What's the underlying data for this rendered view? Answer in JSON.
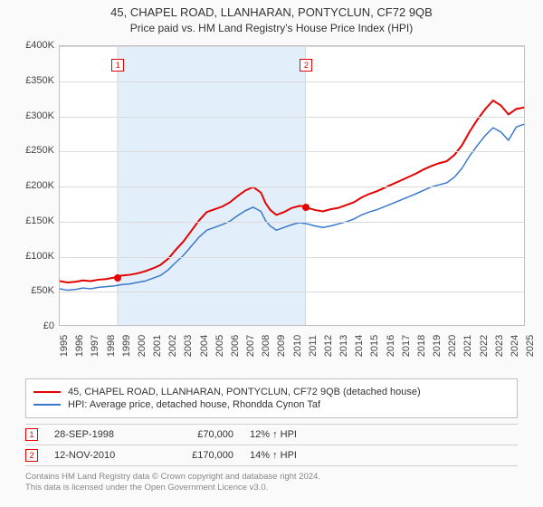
{
  "title": {
    "line1": "45, CHAPEL ROAD, LLANHARAN, PONTYCLUN, CF72 9QB",
    "line2": "Price paid vs. HM Land Registry's House Price Index (HPI)",
    "fontsize1": 13,
    "fontsize2": 12
  },
  "chart": {
    "background_color": "#ffffff",
    "grid_color": "#dadada",
    "border_color": "#bfbfbf",
    "highlight_color": "#e2effa",
    "ylim": [
      0,
      400000
    ],
    "ytick_step": 50000,
    "yticks": [
      "£0",
      "£50K",
      "£100K",
      "£150K",
      "£200K",
      "£250K",
      "£300K",
      "£350K",
      "£400K"
    ],
    "xlim": [
      1995,
      2025
    ],
    "xticks": [
      "1995",
      "1996",
      "1997",
      "1998",
      "1999",
      "2000",
      "2001",
      "2002",
      "2003",
      "2004",
      "2005",
      "2006",
      "2007",
      "2008",
      "2009",
      "2010",
      "2011",
      "2012",
      "2013",
      "2014",
      "2015",
      "2016",
      "2017",
      "2018",
      "2019",
      "2020",
      "2021",
      "2022",
      "2023",
      "2024",
      "2025"
    ],
    "label_fontsize": 11,
    "highlight_range": [
      1998.74,
      2010.87
    ],
    "series": [
      {
        "name": "45, CHAPEL ROAD, LLANHARAN, PONTYCLUN, CF72 9QB (detached house)",
        "color": "#e60000",
        "line_width": 2,
        "data": [
          [
            1995,
            63000
          ],
          [
            1995.5,
            61000
          ],
          [
            1996,
            62000
          ],
          [
            1996.5,
            64000
          ],
          [
            1997,
            63000
          ],
          [
            1997.5,
            65000
          ],
          [
            1998,
            66000
          ],
          [
            1998.5,
            68000
          ],
          [
            1998.74,
            70000
          ],
          [
            1999,
            71000
          ],
          [
            1999.5,
            72000
          ],
          [
            2000,
            74000
          ],
          [
            2000.5,
            77000
          ],
          [
            2001,
            81000
          ],
          [
            2001.5,
            86000
          ],
          [
            2002,
            95000
          ],
          [
            2002.5,
            108000
          ],
          [
            2003,
            120000
          ],
          [
            2003.5,
            135000
          ],
          [
            2004,
            150000
          ],
          [
            2004.5,
            162000
          ],
          [
            2005,
            166000
          ],
          [
            2005.5,
            170000
          ],
          [
            2006,
            176000
          ],
          [
            2006.5,
            185000
          ],
          [
            2007,
            193000
          ],
          [
            2007.5,
            198000
          ],
          [
            2008,
            190000
          ],
          [
            2008.3,
            175000
          ],
          [
            2008.6,
            165000
          ],
          [
            2009,
            158000
          ],
          [
            2009.5,
            162000
          ],
          [
            2010,
            168000
          ],
          [
            2010.5,
            171000
          ],
          [
            2010.87,
            170000
          ],
          [
            2011,
            168000
          ],
          [
            2011.5,
            165000
          ],
          [
            2012,
            163000
          ],
          [
            2012.5,
            166000
          ],
          [
            2013,
            168000
          ],
          [
            2013.5,
            172000
          ],
          [
            2014,
            176000
          ],
          [
            2014.5,
            183000
          ],
          [
            2015,
            188000
          ],
          [
            2015.5,
            192000
          ],
          [
            2016,
            197000
          ],
          [
            2016.5,
            202000
          ],
          [
            2017,
            207000
          ],
          [
            2017.5,
            212000
          ],
          [
            2018,
            217000
          ],
          [
            2018.5,
            223000
          ],
          [
            2019,
            228000
          ],
          [
            2019.5,
            232000
          ],
          [
            2020,
            235000
          ],
          [
            2020.5,
            244000
          ],
          [
            2021,
            258000
          ],
          [
            2021.5,
            278000
          ],
          [
            2022,
            295000
          ],
          [
            2022.5,
            310000
          ],
          [
            2023,
            322000
          ],
          [
            2023.5,
            315000
          ],
          [
            2024,
            302000
          ],
          [
            2024.5,
            310000
          ],
          [
            2025,
            312000
          ]
        ]
      },
      {
        "name": "HPI: Average price, detached house, Rhondda Cynon Taf",
        "color": "#3a78c9",
        "line_width": 1.5,
        "data": [
          [
            1995,
            52000
          ],
          [
            1995.5,
            50000
          ],
          [
            1996,
            51000
          ],
          [
            1996.5,
            53000
          ],
          [
            1997,
            52000
          ],
          [
            1997.5,
            54000
          ],
          [
            1998,
            55000
          ],
          [
            1998.5,
            56000
          ],
          [
            1999,
            58000
          ],
          [
            1999.5,
            59000
          ],
          [
            2000,
            61000
          ],
          [
            2000.5,
            63000
          ],
          [
            2001,
            67000
          ],
          [
            2001.5,
            71000
          ],
          [
            2002,
            79000
          ],
          [
            2002.5,
            90000
          ],
          [
            2003,
            100000
          ],
          [
            2003.5,
            113000
          ],
          [
            2004,
            126000
          ],
          [
            2004.5,
            136000
          ],
          [
            2005,
            140000
          ],
          [
            2005.5,
            144000
          ],
          [
            2006,
            149000
          ],
          [
            2006.5,
            157000
          ],
          [
            2007,
            164000
          ],
          [
            2007.5,
            169000
          ],
          [
            2008,
            163000
          ],
          [
            2008.3,
            150000
          ],
          [
            2008.6,
            142000
          ],
          [
            2009,
            136000
          ],
          [
            2009.5,
            140000
          ],
          [
            2010,
            144000
          ],
          [
            2010.5,
            147000
          ],
          [
            2011,
            145000
          ],
          [
            2011.5,
            142000
          ],
          [
            2012,
            140000
          ],
          [
            2012.5,
            142000
          ],
          [
            2013,
            145000
          ],
          [
            2013.5,
            148000
          ],
          [
            2014,
            152000
          ],
          [
            2014.5,
            158000
          ],
          [
            2015,
            162000
          ],
          [
            2015.5,
            165500
          ],
          [
            2016,
            170000
          ],
          [
            2016.5,
            174500
          ],
          [
            2017,
            179000
          ],
          [
            2017.5,
            183500
          ],
          [
            2018,
            188000
          ],
          [
            2018.5,
            193000
          ],
          [
            2019,
            198000
          ],
          [
            2019.5,
            201000
          ],
          [
            2020,
            204000
          ],
          [
            2020.5,
            212000
          ],
          [
            2021,
            225000
          ],
          [
            2021.5,
            243000
          ],
          [
            2022,
            258000
          ],
          [
            2022.5,
            272000
          ],
          [
            2023,
            283000
          ],
          [
            2023.5,
            277000
          ],
          [
            2024,
            265000
          ],
          [
            2024.5,
            284000
          ],
          [
            2025,
            288000
          ]
        ]
      }
    ],
    "markers": [
      {
        "label": "1",
        "x": 1998.74,
        "y": 70000,
        "color": "#e60000"
      },
      {
        "label": "2",
        "x": 2010.87,
        "y": 170000,
        "color": "#e60000"
      }
    ]
  },
  "legend": {
    "border_color": "#c0c0c0",
    "items": [
      {
        "color": "#e60000",
        "label": "45, CHAPEL ROAD, LLANHARAN, PONTYCLUN, CF72 9QB (detached house)"
      },
      {
        "color": "#3a78c9",
        "label": "HPI: Average price, detached house, Rhondda Cynon Taf"
      }
    ]
  },
  "sales": [
    {
      "marker": "1",
      "marker_color": "#e60000",
      "date": "28-SEP-1998",
      "price": "£70,000",
      "hpi": "12% ↑ HPI"
    },
    {
      "marker": "2",
      "marker_color": "#e60000",
      "date": "12-NOV-2010",
      "price": "£170,000",
      "hpi": "14% ↑ HPI"
    }
  ],
  "footer": {
    "line1": "Contains HM Land Registry data © Crown copyright and database right 2024.",
    "line2": "This data is licensed under the Open Government Licence v3.0."
  }
}
